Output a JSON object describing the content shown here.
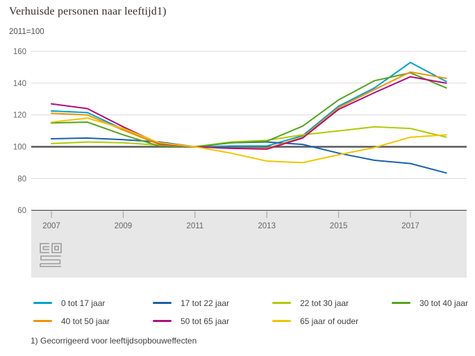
{
  "chart_data": {
    "type": "line",
    "title": "Verhuisde personen naar leeftijd1)",
    "subtitle": "2011=100",
    "footnote": "1) Gecorrigeerd voor leeftijdsopbouweffecten",
    "x": [
      2007,
      2008,
      2009,
      2010,
      2011,
      2012,
      2013,
      2014,
      2015,
      2016,
      2017,
      2018
    ],
    "xticks": [
      "2007",
      "2009",
      "2011",
      "2013",
      "2015",
      "2017"
    ],
    "yticks": [
      "60",
      "80",
      "100",
      "120",
      "140",
      "160"
    ],
    "ylim": [
      60,
      165
    ],
    "baseline": 100,
    "grid": true,
    "legend_position": "bottom",
    "logo": "cbs-logo",
    "series": [
      {
        "name": "0 tot 17 jaar",
        "color": "#00a1cd",
        "values": [
          122.5,
          121.5,
          111,
          102,
          100,
          100.5,
          100.5,
          107,
          125.5,
          137,
          153,
          141
        ]
      },
      {
        "name": "17 tot 22 jaar",
        "color": "#1a61a8",
        "values": [
          105,
          105.5,
          104.5,
          103,
          100,
          102.5,
          103,
          101.5,
          96,
          91.5,
          89.5,
          83.5
        ]
      },
      {
        "name": "22 tot 30 jaar",
        "color": "#afcb05",
        "values": [
          102,
          103,
          102.5,
          101,
          100,
          103,
          104,
          107.5,
          110,
          112.5,
          111.5,
          106
        ]
      },
      {
        "name": "30 tot 40 jaar",
        "color": "#53a31d",
        "values": [
          115,
          115.5,
          107.5,
          100.5,
          100,
          102.5,
          103.5,
          113,
          129.5,
          141.5,
          146.5,
          137
        ]
      },
      {
        "name": "40 tot 50 jaar",
        "color": "#f39200",
        "values": [
          121,
          120,
          110.5,
          101.5,
          100,
          99,
          99,
          106,
          124.5,
          136,
          147,
          143
        ]
      },
      {
        "name": "50 tot 65 jaar",
        "color": "#af0e7f",
        "values": [
          127,
          124,
          112.5,
          102,
          100,
          99,
          98.5,
          105.5,
          123.5,
          134,
          144,
          140
        ]
      },
      {
        "name": "65 jaar of ouder",
        "color": "#f2c400",
        "values": [
          115.5,
          118,
          111.5,
          102.5,
          100,
          96,
          91,
          90,
          95,
          99.5,
          106,
          107.5
        ]
      }
    ]
  }
}
